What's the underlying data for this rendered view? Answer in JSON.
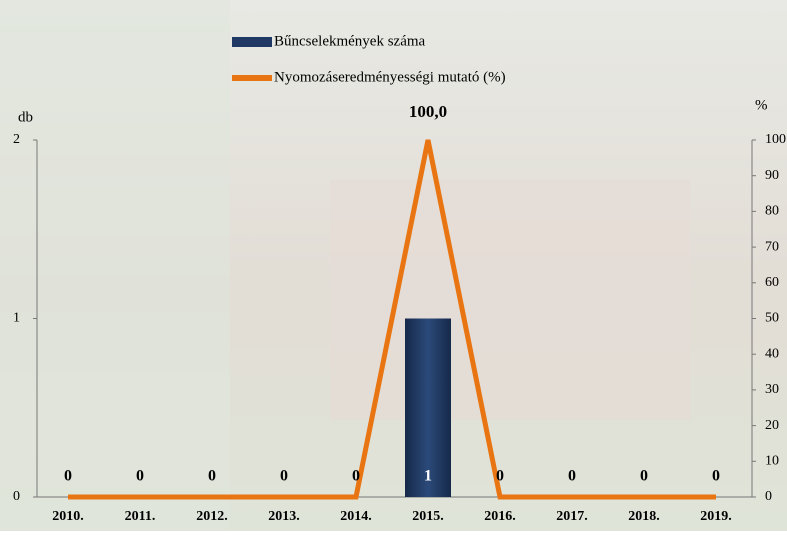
{
  "chart_data": {
    "type": "bar-line",
    "categories": [
      "2010.",
      "2011.",
      "2012.",
      "2013.",
      "2014.",
      "2015.",
      "2016.",
      "2017.",
      "2018.",
      "2019."
    ],
    "series": [
      {
        "name": "Bűncselekmények száma",
        "color": "#1f3864",
        "values": [
          0,
          0,
          0,
          0,
          0,
          1,
          0,
          0,
          0,
          0
        ]
      },
      {
        "name": "Nyomozáseredményességi mutató (%)",
        "color": "#e87511",
        "axis": "y2",
        "values": [
          0,
          0,
          0,
          0,
          0,
          100,
          0,
          0,
          0,
          0
        ],
        "value_labels": [
          null,
          null,
          null,
          null,
          null,
          "100,0",
          null,
          null,
          null,
          null
        ]
      }
    ],
    "ylabel": "db",
    "y2label": "%",
    "ylim": [
      0,
      2
    ],
    "yticks": [
      0,
      1,
      2
    ],
    "y2lim": [
      0,
      100
    ],
    "y2ticks": [
      0,
      10,
      20,
      30,
      40,
      50,
      60,
      70,
      80,
      90,
      100
    ]
  }
}
